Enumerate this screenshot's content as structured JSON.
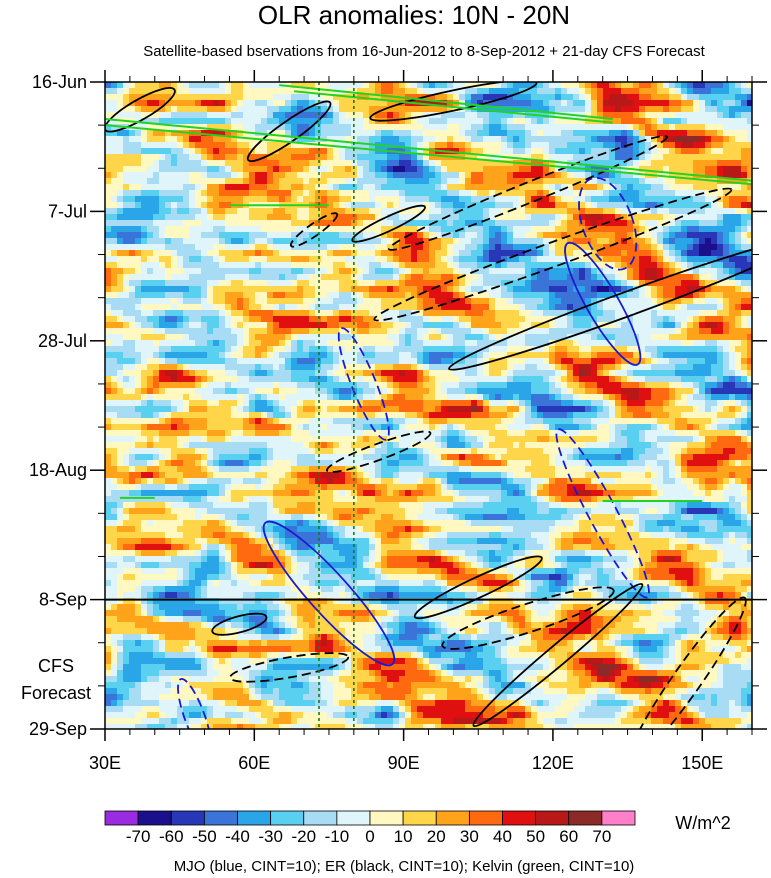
{
  "chart_data": {
    "type": "heatmap",
    "title": "OLR anomalies: 10N - 20N",
    "subtitle": "Satellite-based bservations from 16-Jun-2012 to 8-Sep-2012 + 21-day CFS Forecast",
    "x_axis": {
      "range": [
        30,
        160
      ],
      "ticks": [
        30,
        60,
        90,
        120,
        150
      ],
      "tick_labels": [
        "30E",
        "60E",
        "90E",
        "120E",
        "150E"
      ]
    },
    "y_axis": {
      "ticks": [
        "2012-06-16",
        "2012-07-07",
        "2012-07-28",
        "2012-08-18",
        "2012-09-08",
        "2012-09-29"
      ],
      "tick_labels": [
        "16-Jun",
        "7-Jul",
        "28-Jul",
        "18-Aug",
        "8-Sep",
        "29-Sep"
      ],
      "range": [
        "2012-06-16",
        "2012-09-29"
      ],
      "direction": "top-to-bottom"
    },
    "forecast_label_lines": [
      "CFS",
      "Forecast"
    ],
    "observation_end": "2012-09-08",
    "reference_lines_lon": [
      73,
      80
    ],
    "colorbar": {
      "levels": [
        -70,
        -60,
        -50,
        -40,
        -30,
        -20,
        -10,
        0,
        10,
        20,
        30,
        40,
        50,
        60,
        70
      ],
      "labels": [
        "-70",
        "-60",
        "-50",
        "-40",
        "-30",
        "-20",
        "-10",
        "0",
        "10",
        "20",
        "30",
        "40",
        "50",
        "60",
        "70"
      ],
      "colors": [
        "#9a2be0",
        "#1c0f8c",
        "#2836b8",
        "#3a74d8",
        "#2aa6e8",
        "#5ad0f0",
        "#a8dcf5",
        "#dff5fa",
        "#fff8c0",
        "#ffd54a",
        "#ffa31a",
        "#ff6a10",
        "#e01010",
        "#b81818",
        "#8c2a2a",
        "#ff80c8"
      ],
      "units": "W/m^2"
    },
    "contours": {
      "caption": "MJO (blue, CINT=10); ER (black, CINT=10); Kelvin (green, CINT=10)",
      "mjo_color": "#1a1ad0",
      "er_color": "#000000",
      "kelvin_color": "#22d422"
    }
  }
}
